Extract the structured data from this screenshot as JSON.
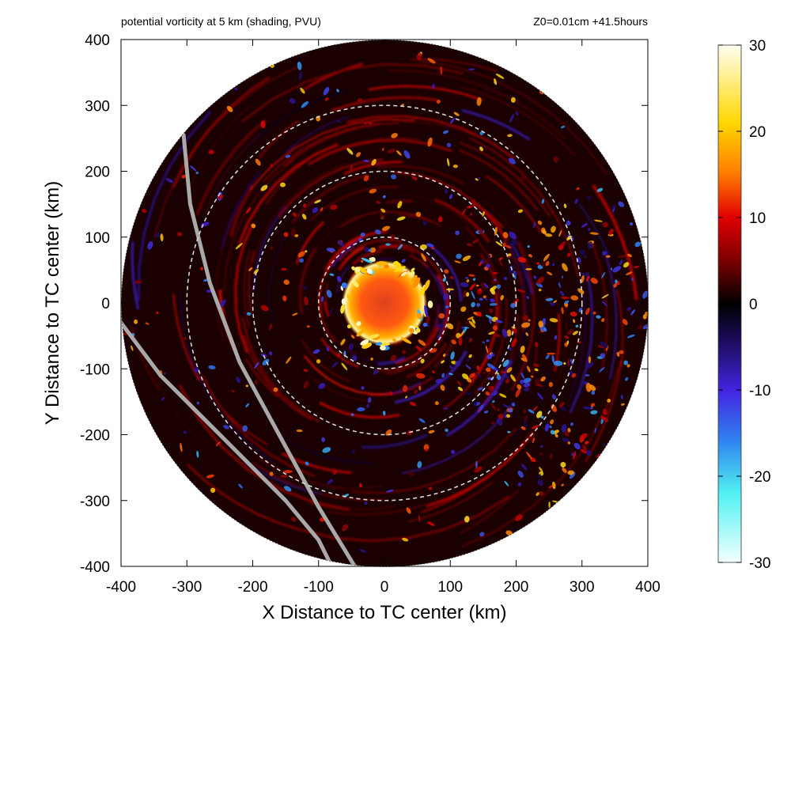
{
  "chart_data": {
    "type": "heatmap",
    "title": "potential vorticity at 5 km (shading, PVU)",
    "subtitle": "Z0=0.01cm  +41.5hours",
    "xlabel": "X Distance to TC center (km)",
    "ylabel": "Y Distance to TC center (km)",
    "xlim": [
      -400,
      400
    ],
    "ylim": [
      -400,
      400
    ],
    "xticks": [
      "-400",
      "-300",
      "-200",
      "-100",
      "0",
      "100",
      "200",
      "300",
      "400"
    ],
    "yticks": [
      "400",
      "300",
      "200",
      "100",
      "0",
      "-100",
      "-200",
      "-300",
      "-400"
    ],
    "domain_radius_km": 400,
    "range_rings_km": [
      100,
      200,
      300
    ],
    "colorbar": {
      "min": -30,
      "max": 30,
      "ticks": [
        "30",
        "20",
        "10",
        "0",
        "-10",
        "-20",
        "-30"
      ],
      "colormap": [
        {
          "value": -30,
          "color": "#f4ffff"
        },
        {
          "value": -22,
          "color": "#52f1f2"
        },
        {
          "value": -16,
          "color": "#2f86f0"
        },
        {
          "value": -10,
          "color": "#4323e0"
        },
        {
          "value": -4,
          "color": "#1a0a55"
        },
        {
          "value": 0,
          "color": "#000000"
        },
        {
          "value": 5,
          "color": "#7a0000"
        },
        {
          "value": 10,
          "color": "#e20000"
        },
        {
          "value": 15,
          "color": "#ff7a00"
        },
        {
          "value": 21,
          "color": "#ffd700"
        },
        {
          "value": 30,
          "color": "#fffff2"
        }
      ]
    },
    "fields": {
      "inner_core": {
        "center": [
          0,
          0
        ],
        "radius_km": 55,
        "pv": 12
      },
      "eyewall_ring": {
        "radius_km": 65,
        "pv": 22
      },
      "track_lines": [
        {
          "points": [
            [
              -305,
              255
            ],
            [
              -295,
              150
            ],
            [
              -265,
              30
            ],
            [
              -220,
              -90
            ],
            [
              -160,
              -200
            ],
            [
              -100,
              -310
            ],
            [
              -45,
              -400
            ]
          ]
        },
        {
          "points": [
            [
              -400,
              -30
            ],
            [
              -340,
              -110
            ],
            [
              -270,
              -180
            ],
            [
              -200,
              -250
            ],
            [
              -150,
              -300
            ],
            [
              -100,
              -360
            ],
            [
              -80,
              -400
            ]
          ]
        }
      ]
    }
  }
}
